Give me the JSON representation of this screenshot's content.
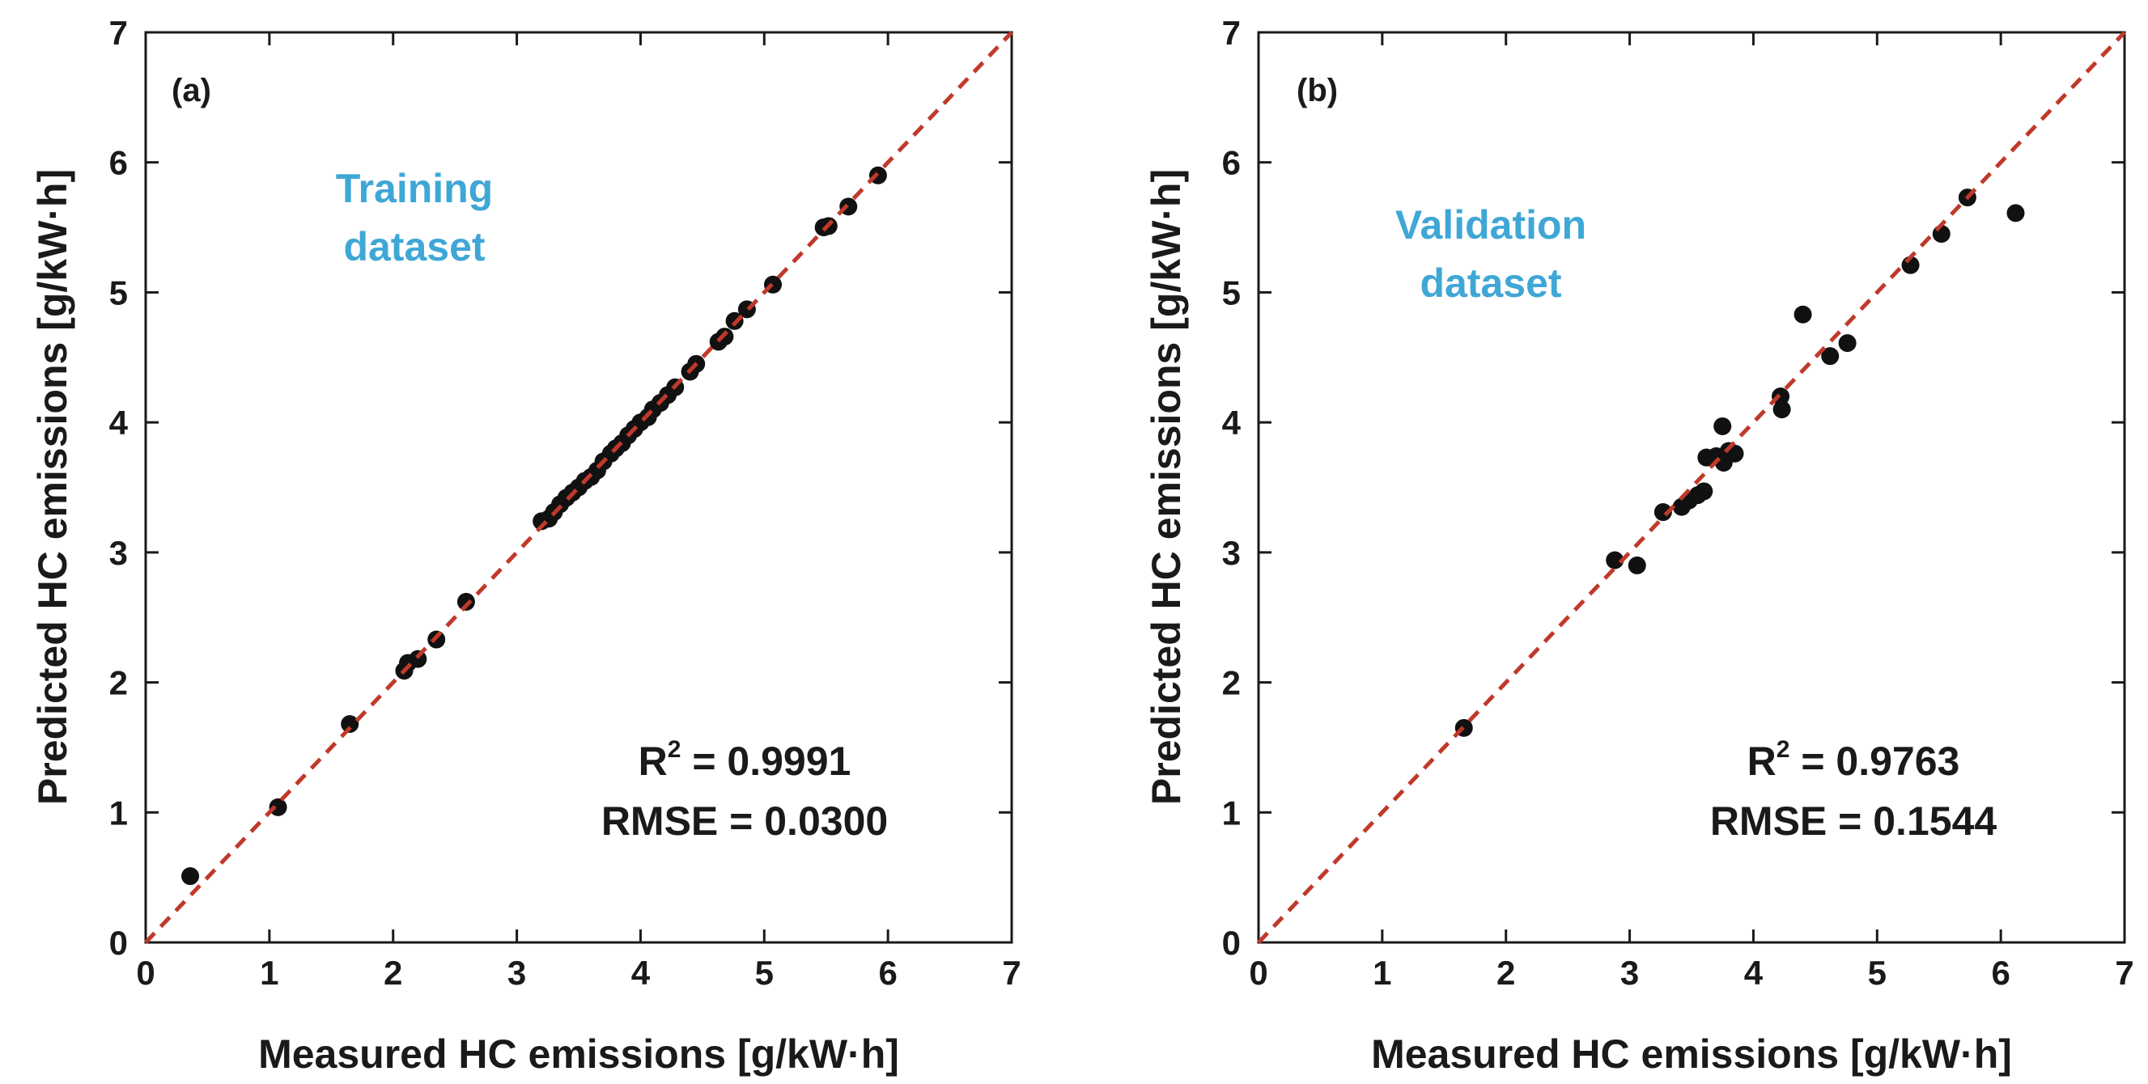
{
  "colors": {
    "identity_line": "#c0392b",
    "points": "#111111",
    "dataset_label": "#3fa7d6",
    "axis": "#1a1a1a"
  },
  "chart_data": [
    {
      "type": "scatter",
      "panel_label": "(a)",
      "dataset_label_lines": [
        "Training",
        "dataset"
      ],
      "xlabel": "Measured HC emissions [g/kW·h]",
      "ylabel": "Predicted HC emissions [g/kW·h]",
      "xlim": [
        0,
        7
      ],
      "ylim": [
        0,
        7
      ],
      "xticks": [
        "0",
        "1",
        "2",
        "3",
        "4",
        "5",
        "6",
        "7"
      ],
      "yticks": [
        "0",
        "1",
        "2",
        "3",
        "4",
        "5",
        "6",
        "7"
      ],
      "r2_label": "R",
      "r2_sup": "2",
      "r2_value": " = 0.9991",
      "rmse_text": "RMSE = 0.0300",
      "reference_line": {
        "from": [
          0,
          0
        ],
        "to": [
          7,
          7
        ],
        "style": "dashed"
      },
      "series": [
        {
          "name": "Training",
          "points": [
            [
              0.36,
              0.51
            ],
            [
              1.07,
              1.04
            ],
            [
              1.65,
              1.68
            ],
            [
              2.09,
              2.09
            ],
            [
              2.12,
              2.15
            ],
            [
              2.2,
              2.18
            ],
            [
              2.35,
              2.33
            ],
            [
              2.59,
              2.62
            ],
            [
              3.2,
              3.24
            ],
            [
              3.26,
              3.26
            ],
            [
              3.3,
              3.31
            ],
            [
              3.35,
              3.37
            ],
            [
              3.4,
              3.42
            ],
            [
              3.45,
              3.46
            ],
            [
              3.5,
              3.5
            ],
            [
              3.55,
              3.55
            ],
            [
              3.6,
              3.58
            ],
            [
              3.65,
              3.63
            ],
            [
              3.7,
              3.7
            ],
            [
              3.76,
              3.76
            ],
            [
              3.8,
              3.8
            ],
            [
              3.85,
              3.84
            ],
            [
              3.9,
              3.9
            ],
            [
              3.95,
              3.95
            ],
            [
              4.0,
              4.0
            ],
            [
              4.06,
              4.04
            ],
            [
              4.1,
              4.1
            ],
            [
              4.16,
              4.15
            ],
            [
              4.22,
              4.21
            ],
            [
              4.28,
              4.27
            ],
            [
              4.4,
              4.39
            ],
            [
              4.45,
              4.45
            ],
            [
              4.63,
              4.62
            ],
            [
              4.68,
              4.66
            ],
            [
              4.76,
              4.78
            ],
            [
              4.86,
              4.87
            ],
            [
              5.07,
              5.06
            ],
            [
              5.48,
              5.5
            ],
            [
              5.52,
              5.51
            ],
            [
              5.68,
              5.66
            ],
            [
              5.92,
              5.9
            ]
          ]
        }
      ]
    },
    {
      "type": "scatter",
      "panel_label": "(b)",
      "dataset_label_lines": [
        "Validation",
        "dataset"
      ],
      "xlabel": "Measured HC emissions [g/kW·h]",
      "ylabel": "Predicted HC emissions [g/kW·h]",
      "xlim": [
        0,
        7
      ],
      "ylim": [
        0,
        7
      ],
      "xticks": [
        "0",
        "1",
        "2",
        "3",
        "4",
        "5",
        "6",
        "7"
      ],
      "yticks": [
        "0",
        "1",
        "2",
        "3",
        "4",
        "5",
        "6",
        "7"
      ],
      "r2_label": "R",
      "r2_sup": "2",
      "r2_value": " = 0.9763",
      "rmse_text": "RMSE = 0.1544",
      "reference_line": {
        "from": [
          0,
          0
        ],
        "to": [
          7,
          7
        ],
        "style": "dashed"
      },
      "series": [
        {
          "name": "Validation",
          "points": [
            [
              1.66,
              1.65
            ],
            [
              2.88,
              2.94
            ],
            [
              3.06,
              2.9
            ],
            [
              3.27,
              3.31
            ],
            [
              3.42,
              3.35
            ],
            [
              3.48,
              3.4
            ],
            [
              3.55,
              3.44
            ],
            [
              3.6,
              3.47
            ],
            [
              3.62,
              3.73
            ],
            [
              3.7,
              3.74
            ],
            [
              3.75,
              3.97
            ],
            [
              3.76,
              3.69
            ],
            [
              3.8,
              3.78
            ],
            [
              3.85,
              3.76
            ],
            [
              4.22,
              4.2
            ],
            [
              4.23,
              4.1
            ],
            [
              4.4,
              4.83
            ],
            [
              4.62,
              4.51
            ],
            [
              4.76,
              4.61
            ],
            [
              5.27,
              5.21
            ],
            [
              5.52,
              5.45
            ],
            [
              5.73,
              5.73
            ],
            [
              6.12,
              5.61
            ]
          ]
        }
      ]
    }
  ]
}
